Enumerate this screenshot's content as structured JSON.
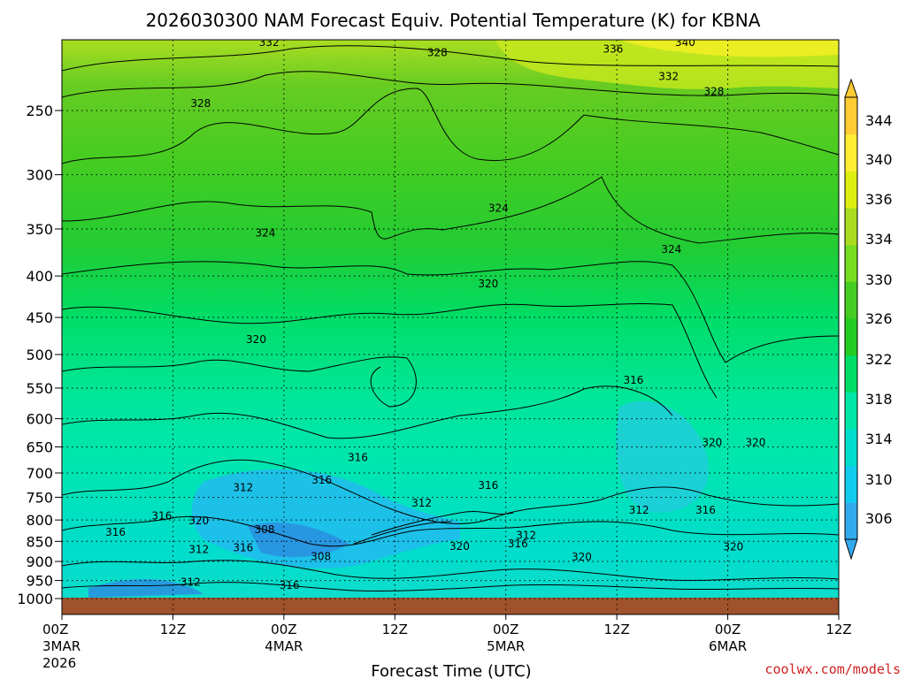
{
  "chart_data": {
    "type": "heatmap",
    "title": "2026030300 NAM Forecast Equiv. Potential Temperature (K) for KBNA",
    "xlabel": "Forecast Time (UTC)",
    "ylabel": "",
    "x_ticks": [
      {
        "label": "00Z",
        "sub": "3MAR",
        "sub2": "2026",
        "hour": 0
      },
      {
        "label": "12Z",
        "sub": "",
        "sub2": "",
        "hour": 12
      },
      {
        "label": "00Z",
        "sub": "4MAR",
        "sub2": "",
        "hour": 24
      },
      {
        "label": "12Z",
        "sub": "",
        "sub2": "",
        "hour": 36
      },
      {
        "label": "00Z",
        "sub": "5MAR",
        "sub2": "",
        "hour": 48
      },
      {
        "label": "12Z",
        "sub": "",
        "sub2": "",
        "hour": 60
      },
      {
        "label": "00Z",
        "sub": "6MAR",
        "sub2": "",
        "hour": 72
      },
      {
        "label": "12Z",
        "sub": "",
        "sub2": "",
        "hour": 84
      }
    ],
    "xlim": [
      0,
      84
    ],
    "y_ticks": [
      250,
      300,
      350,
      400,
      450,
      500,
      550,
      600,
      650,
      700,
      750,
      800,
      850,
      900,
      950,
      1000
    ],
    "ylim": [
      1000,
      200
    ],
    "y_scale": "log",
    "grid": true,
    "colorbar": {
      "levels": [
        306,
        310,
        314,
        318,
        322,
        326,
        330,
        334,
        336,
        340,
        344
      ],
      "colors": [
        "#33aaee",
        "#11ccee",
        "#00ddcc",
        "#00e6a6",
        "#00dd66",
        "#22cc22",
        "#44cc22",
        "#77dd22",
        "#aadd22",
        "#ddee11",
        "#ffee33",
        "#ffcc33"
      ]
    },
    "contour_labels": [
      {
        "text": "332",
        "t": 22.4,
        "p": 206
      },
      {
        "text": "328",
        "t": 40.6,
        "p": 212
      },
      {
        "text": "336",
        "t": 59.6,
        "p": 210
      },
      {
        "text": "340",
        "t": 67.4,
        "p": 206
      },
      {
        "text": "332",
        "t": 65.6,
        "p": 227
      },
      {
        "text": "328",
        "t": 70.5,
        "p": 237
      },
      {
        "text": "328",
        "t": 15,
        "p": 245
      },
      {
        "text": "324",
        "t": 22,
        "p": 354
      },
      {
        "text": "324",
        "t": 47.2,
        "p": 330
      },
      {
        "text": "324",
        "t": 65.9,
        "p": 371
      },
      {
        "text": "320",
        "t": 46.1,
        "p": 409
      },
      {
        "text": "320",
        "t": 21,
        "p": 479
      },
      {
        "text": "316",
        "t": 61.8,
        "p": 538
      },
      {
        "text": "316",
        "t": 32,
        "p": 670
      },
      {
        "text": "316",
        "t": 28.1,
        "p": 714
      },
      {
        "text": "316",
        "t": 46.1,
        "p": 725
      },
      {
        "text": "312",
        "t": 19.6,
        "p": 730
      },
      {
        "text": "312",
        "t": 38.9,
        "p": 762
      },
      {
        "text": "316",
        "t": 10.8,
        "p": 791
      },
      {
        "text": "320",
        "t": 14.8,
        "p": 802
      },
      {
        "text": "308",
        "t": 21.9,
        "p": 822
      },
      {
        "text": "316",
        "t": 5.8,
        "p": 828
      },
      {
        "text": "312",
        "t": 14.8,
        "p": 870
      },
      {
        "text": "316",
        "t": 19.6,
        "p": 865
      },
      {
        "text": "308",
        "t": 28,
        "p": 888
      },
      {
        "text": "320",
        "t": 43,
        "p": 862
      },
      {
        "text": "316",
        "t": 49.3,
        "p": 856
      },
      {
        "text": "312",
        "t": 50.2,
        "p": 836
      },
      {
        "text": "320",
        "t": 56.2,
        "p": 889
      },
      {
        "text": "312",
        "t": 62.4,
        "p": 778
      },
      {
        "text": "316",
        "t": 69.6,
        "p": 778
      },
      {
        "text": "320",
        "t": 70.3,
        "p": 642
      },
      {
        "text": "320",
        "t": 75,
        "p": 642
      },
      {
        "text": "320",
        "t": 72.6,
        "p": 863
      },
      {
        "text": "312",
        "t": 13.9,
        "p": 955
      },
      {
        "text": "316",
        "t": 24.6,
        "p": 963
      }
    ],
    "terrain": {
      "surface_pressure": 1000,
      "color": "#a0522d"
    }
  },
  "credit": "coolwx.com/models"
}
